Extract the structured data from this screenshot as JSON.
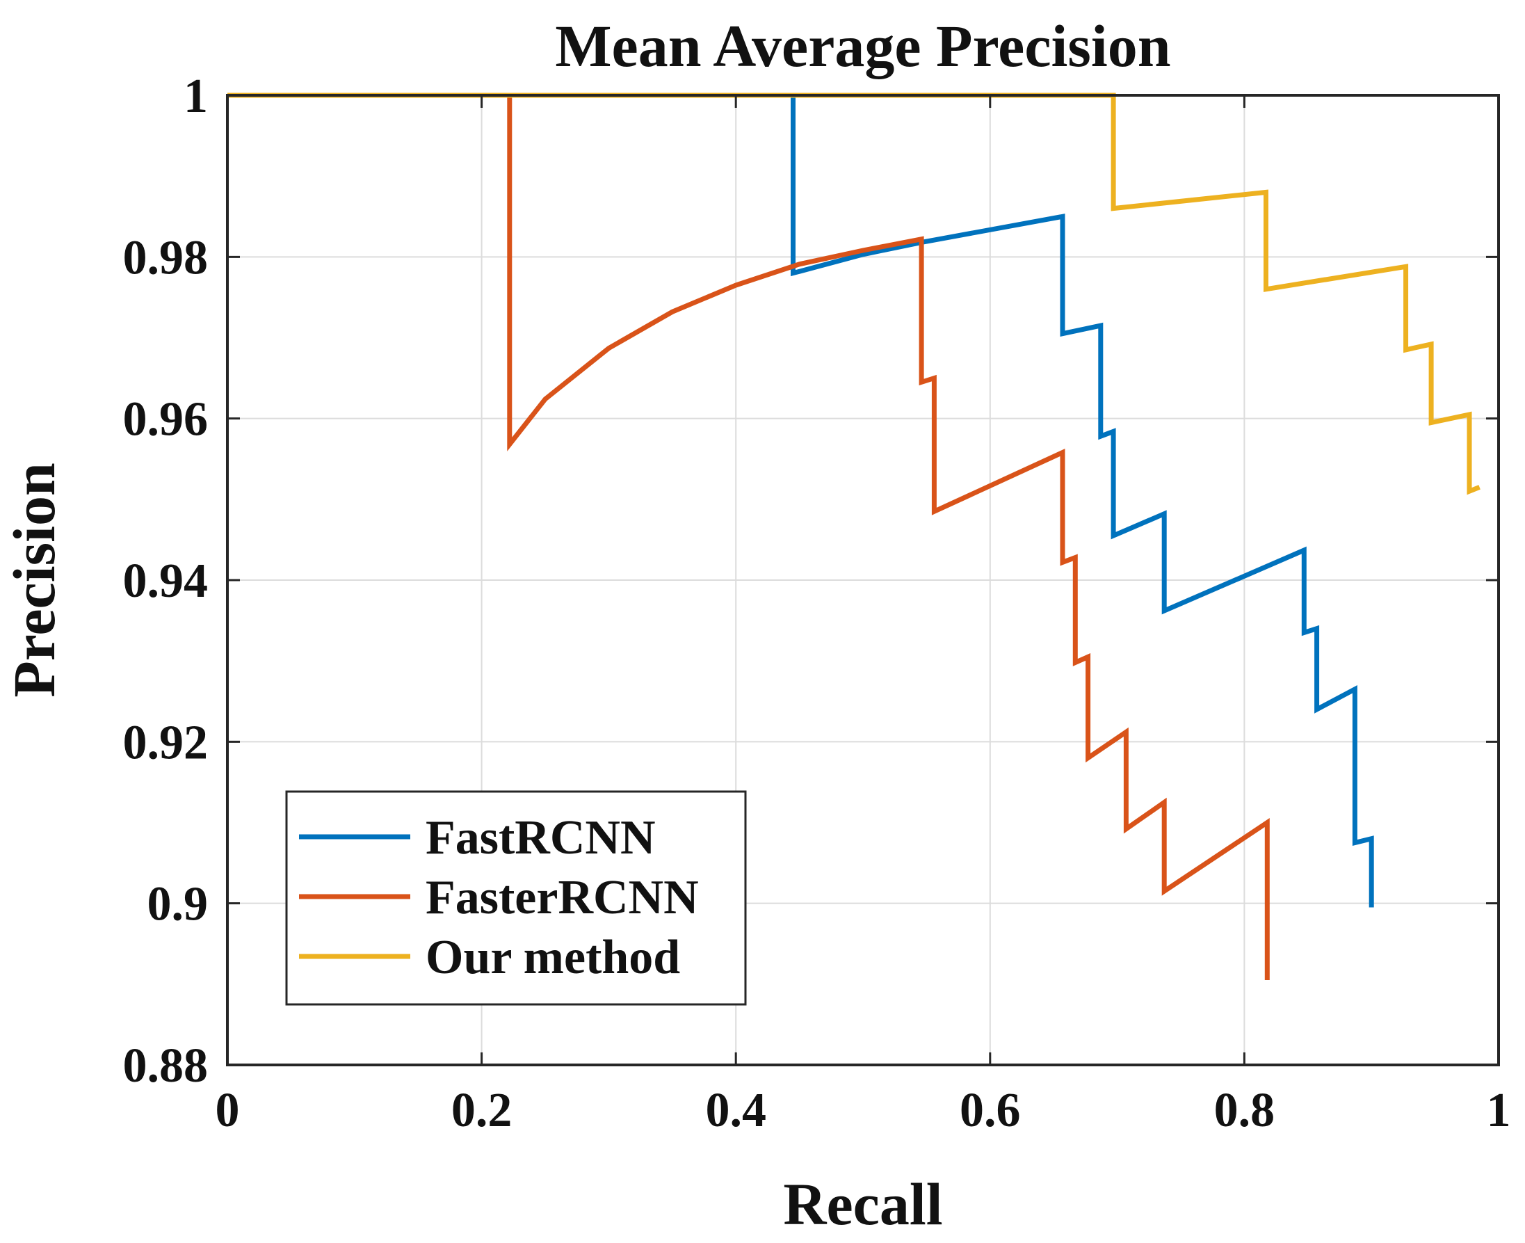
{
  "chart_data": {
    "type": "line",
    "title": "Mean Average Precision",
    "xlabel": "Recall",
    "ylabel": "Precision",
    "xlim": [
      0,
      1
    ],
    "ylim": [
      0.88,
      1
    ],
    "xticks": [
      0,
      0.2,
      0.4,
      0.6,
      0.8,
      1
    ],
    "xtick_labels": [
      "0",
      "0.2",
      "0.4",
      "0.6",
      "0.8",
      "1"
    ],
    "yticks": [
      0.88,
      0.9,
      0.92,
      0.94,
      0.96,
      0.98,
      1
    ],
    "ytick_labels": [
      "0.88",
      "0.9",
      "0.92",
      "0.94",
      "0.96",
      "0.98",
      "1"
    ],
    "grid": true,
    "legend_position": "bottom-left",
    "series": [
      {
        "name": "FastRCNN",
        "color": "#0072BD",
        "points": [
          [
            0,
            1
          ],
          [
            0.445,
            1
          ],
          [
            0.445,
            0.978
          ],
          [
            0.45,
            0.9782
          ],
          [
            0.5,
            0.9803
          ],
          [
            0.546,
            0.9818
          ],
          [
            0.657,
            0.985
          ],
          [
            0.657,
            0.9705
          ],
          [
            0.687,
            0.9715
          ],
          [
            0.687,
            0.9578
          ],
          [
            0.697,
            0.9584
          ],
          [
            0.697,
            0.9455
          ],
          [
            0.737,
            0.9482
          ],
          [
            0.737,
            0.9362
          ],
          [
            0.847,
            0.9437
          ],
          [
            0.847,
            0.9335
          ],
          [
            0.857,
            0.934
          ],
          [
            0.857,
            0.924
          ],
          [
            0.887,
            0.9265
          ],
          [
            0.887,
            0.9075
          ],
          [
            0.9,
            0.908
          ],
          [
            0.9,
            0.8995
          ]
        ]
      },
      {
        "name": "FasterRCNN",
        "color": "#D95319",
        "points": [
          [
            0,
            1
          ],
          [
            0.222,
            1
          ],
          [
            0.222,
            0.9568
          ],
          [
            0.25,
            0.9624
          ],
          [
            0.3,
            0.9687
          ],
          [
            0.35,
            0.9732
          ],
          [
            0.4,
            0.9765
          ],
          [
            0.45,
            0.9791
          ],
          [
            0.5,
            0.9808
          ],
          [
            0.546,
            0.9822
          ],
          [
            0.546,
            0.9645
          ],
          [
            0.556,
            0.965
          ],
          [
            0.556,
            0.9485
          ],
          [
            0.657,
            0.9558
          ],
          [
            0.657,
            0.9422
          ],
          [
            0.667,
            0.9428
          ],
          [
            0.667,
            0.9298
          ],
          [
            0.677,
            0.9305
          ],
          [
            0.677,
            0.918
          ],
          [
            0.707,
            0.9212
          ],
          [
            0.707,
            0.9092
          ],
          [
            0.737,
            0.9125
          ],
          [
            0.737,
            0.9015
          ],
          [
            0.818,
            0.91
          ],
          [
            0.818,
            0.8905
          ]
        ]
      },
      {
        "name": "Our method",
        "color": "#EDB120",
        "points": [
          [
            0,
            1
          ],
          [
            0.697,
            1
          ],
          [
            0.697,
            0.986
          ],
          [
            0.817,
            0.988
          ],
          [
            0.817,
            0.976
          ],
          [
            0.927,
            0.9788
          ],
          [
            0.927,
            0.9685
          ],
          [
            0.947,
            0.9692
          ],
          [
            0.947,
            0.9595
          ],
          [
            0.977,
            0.9605
          ],
          [
            0.977,
            0.951
          ],
          [
            0.985,
            0.9515
          ]
        ]
      }
    ]
  }
}
